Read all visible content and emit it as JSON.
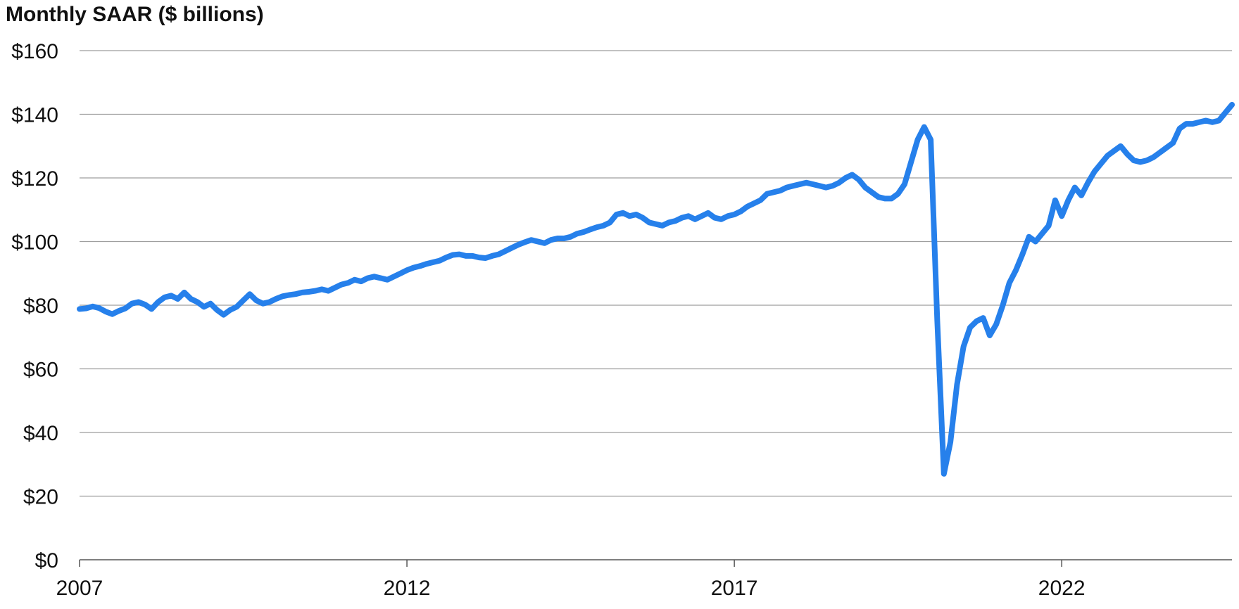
{
  "chart_data": {
    "type": "line",
    "title": "Monthly SAAR ($ billions)",
    "xlabel": "",
    "ylabel": "",
    "ylim": [
      0,
      160
    ],
    "xlim": [
      2007.0,
      2024.6
    ],
    "yticks": [
      0,
      20,
      40,
      60,
      80,
      100,
      120,
      140,
      160
    ],
    "ytick_labels": [
      "$0",
      "$20",
      "$40",
      "$60",
      "$80",
      "$100",
      "$120",
      "$140",
      "$160"
    ],
    "xticks": [
      2007,
      2012,
      2017,
      2022
    ],
    "xtick_labels": [
      "2007",
      "2012",
      "2017",
      "2022"
    ],
    "grid": "horizontal",
    "colors": {
      "line": "#2680EB",
      "grid": "#9E9E9E",
      "axis": "#555555"
    },
    "series": [
      {
        "x": [
          2007.0,
          2007.1,
          2007.2,
          2007.3,
          2007.4,
          2007.5,
          2007.6,
          2007.7,
          2007.8,
          2007.9,
          2008.0,
          2008.1,
          2008.2,
          2008.3,
          2008.4,
          2008.5,
          2008.6,
          2008.7,
          2008.8,
          2008.9,
          2009.0,
          2009.1,
          2009.2,
          2009.3,
          2009.4,
          2009.5,
          2009.6,
          2009.7,
          2009.8,
          2009.9,
          2010.0,
          2010.1,
          2010.2,
          2010.3,
          2010.4,
          2010.5,
          2010.6,
          2010.7,
          2010.8,
          2010.9,
          2011.0,
          2011.1,
          2011.2,
          2011.3,
          2011.4,
          2011.5,
          2011.6,
          2011.7,
          2011.8,
          2011.9,
          2012.0,
          2012.1,
          2012.2,
          2012.3,
          2012.4,
          2012.5,
          2012.6,
          2012.7,
          2012.8,
          2012.9,
          2013.0,
          2013.1,
          2013.2,
          2013.3,
          2013.4,
          2013.5,
          2013.6,
          2013.7,
          2013.8,
          2013.9,
          2014.0,
          2014.1,
          2014.2,
          2014.3,
          2014.4,
          2014.5,
          2014.6,
          2014.7,
          2014.8,
          2014.9,
          2015.0,
          2015.1,
          2015.2,
          2015.3,
          2015.4,
          2015.5,
          2015.6,
          2015.7,
          2015.8,
          2015.9,
          2016.0,
          2016.1,
          2016.2,
          2016.3,
          2016.4,
          2016.5,
          2016.6,
          2016.7,
          2016.8,
          2016.9,
          2017.0,
          2017.1,
          2017.2,
          2017.3,
          2017.4,
          2017.5,
          2017.6,
          2017.7,
          2017.8,
          2017.9,
          2018.0,
          2018.1,
          2018.2,
          2018.3,
          2018.4,
          2018.5,
          2018.6,
          2018.7,
          2018.8,
          2018.9,
          2019.0,
          2019.1,
          2019.2,
          2019.3,
          2019.4,
          2019.5,
          2019.6,
          2019.7,
          2019.8,
          2019.9,
          2020.0,
          2020.1,
          2020.2,
          2020.3,
          2020.4,
          2020.5,
          2020.6,
          2020.7,
          2020.8,
          2020.9,
          2021.0,
          2021.1,
          2021.2,
          2021.3,
          2021.4,
          2021.5,
          2021.6,
          2021.7,
          2021.8,
          2021.9,
          2022.0,
          2022.1,
          2022.2,
          2022.3,
          2022.4,
          2022.5,
          2022.6,
          2022.7,
          2022.8,
          2022.9,
          2023.0,
          2023.1,
          2023.2,
          2023.3,
          2023.4,
          2023.5,
          2023.6,
          2023.7,
          2023.8,
          2023.9,
          2024.0,
          2024.1,
          2024.2,
          2024.3,
          2024.4,
          2024.5,
          2024.6
        ],
        "values": [
          78.8,
          79.0,
          79.6,
          79.1,
          78.0,
          77.2,
          78.2,
          79.0,
          80.5,
          81.0,
          80.2,
          78.8,
          81.0,
          82.5,
          83.0,
          82.0,
          84.0,
          82.0,
          81.0,
          79.5,
          80.5,
          78.5,
          77.0,
          78.5,
          79.5,
          81.5,
          83.5,
          81.5,
          80.5,
          81.0,
          82.0,
          82.8,
          83.2,
          83.5,
          84.0,
          84.2,
          84.5,
          85.0,
          84.5,
          85.5,
          86.5,
          87.0,
          88.0,
          87.5,
          88.5,
          89.0,
          88.5,
          88.0,
          89.0,
          90.0,
          91.0,
          91.8,
          92.3,
          93.0,
          93.5,
          94.0,
          95.0,
          95.8,
          96.0,
          95.5,
          95.5,
          95.0,
          94.8,
          95.5,
          96.0,
          97.0,
          98.0,
          99.0,
          99.8,
          100.5,
          100.0,
          99.5,
          100.5,
          101.0,
          101.0,
          101.5,
          102.5,
          103.0,
          103.8,
          104.5,
          105.0,
          106.0,
          108.5,
          109.0,
          108.0,
          108.5,
          107.5,
          106.0,
          105.5,
          105.0,
          106.0,
          106.5,
          107.5,
          108.0,
          107.0,
          108.0,
          109.0,
          107.5,
          107.0,
          108.0,
          108.5,
          109.5,
          111.0,
          112.0,
          113.0,
          115.0,
          115.5,
          116.0,
          117.0,
          117.5,
          118.0,
          118.5,
          118.0,
          117.5,
          117.0,
          117.5,
          118.5,
          120.0,
          121.0,
          119.5,
          117.0,
          115.5,
          114.0,
          113.5,
          113.5,
          115.0,
          118.0,
          125.0,
          132.0,
          136.0,
          132.0,
          75.0,
          27.0,
          37.0,
          55.0,
          67.0,
          73.0,
          75.0,
          76.0,
          70.5,
          74.0,
          80.0,
          87.0,
          91.0,
          96.0,
          101.5,
          100.0,
          102.5,
          105.0,
          113.0,
          108.0,
          113.0,
          117.0,
          114.5,
          118.5,
          122.0,
          124.5,
          127.0,
          128.5,
          130.0,
          127.5,
          125.5,
          125.0,
          125.5,
          126.5,
          128.0,
          129.5,
          131.0,
          135.5,
          137.0,
          137.0,
          137.5,
          138.0,
          137.5,
          138.0,
          140.5,
          143.0
        ]
      }
    ]
  }
}
